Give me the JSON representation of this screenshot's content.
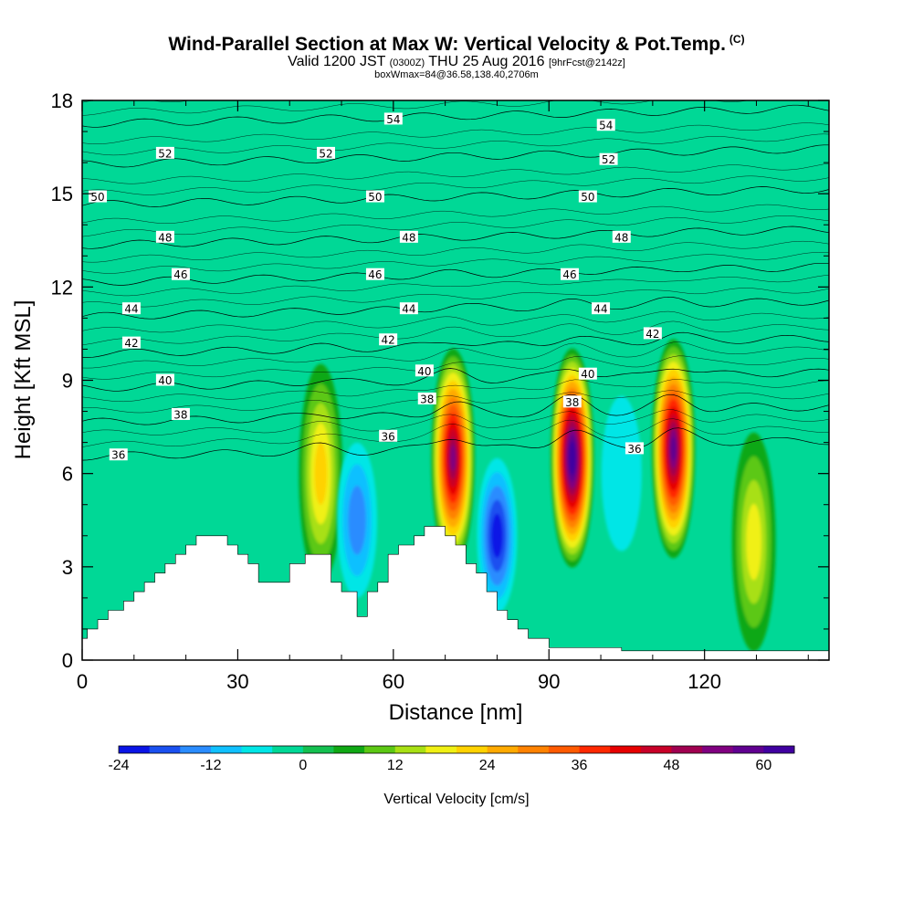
{
  "header": {
    "title": "Wind-Parallel Section at Max W: Vertical Velocity & Pot.Temp.",
    "copyright": "(C)",
    "valid_prefix": "Valid 1200 JST",
    "valid_utc": "(0300Z)",
    "valid_date": "THU 25 Aug 2016",
    "forecast": "[9hrFcst@2142z]",
    "box_info": "boxWmax=84@36.58,138.40,2706m"
  },
  "chart_data": {
    "type": "heatmap",
    "xlabel": "Distance [nm]",
    "ylabel": "Height [Kft MSL]",
    "xlim": [
      0,
      144
    ],
    "ylim": [
      0,
      18
    ],
    "x_ticks": [
      0,
      30,
      60,
      90,
      120
    ],
    "y_ticks": [
      0,
      3,
      6,
      9,
      12,
      15,
      18
    ],
    "colorbar": {
      "label": "Vertical Velocity [cm/s]",
      "min": -24,
      "max": 64,
      "step": 4,
      "tick_labels": [
        "-24",
        "-12",
        "0",
        "12",
        "24",
        "36",
        "48",
        "60"
      ],
      "tick_values": [
        -24,
        -12,
        0,
        12,
        24,
        36,
        48,
        60
      ],
      "colors": [
        "#0a14e6",
        "#1a50f0",
        "#2a8cff",
        "#10c0ff",
        "#00e6e6",
        "#00d896",
        "#14c050",
        "#10a814",
        "#5cc814",
        "#a8e014",
        "#f0f014",
        "#ffd200",
        "#ffaa00",
        "#ff8200",
        "#ff5a00",
        "#ff2800",
        "#e60000",
        "#c80028",
        "#a00050",
        "#800080",
        "#600090",
        "#4000a0"
      ]
    },
    "background_color": "#00d896",
    "terrain_profile": [
      [
        0,
        0.7
      ],
      [
        1,
        0.7
      ],
      [
        1,
        1.0
      ],
      [
        3,
        1.0
      ],
      [
        3,
        1.3
      ],
      [
        5,
        1.3
      ],
      [
        5,
        1.6
      ],
      [
        8,
        1.6
      ],
      [
        8,
        1.9
      ],
      [
        10,
        1.9
      ],
      [
        10,
        2.2
      ],
      [
        12,
        2.2
      ],
      [
        12,
        2.5
      ],
      [
        14,
        2.5
      ],
      [
        14,
        2.8
      ],
      [
        16,
        2.8
      ],
      [
        16,
        3.1
      ],
      [
        18,
        3.1
      ],
      [
        18,
        3.4
      ],
      [
        20,
        3.4
      ],
      [
        20,
        3.7
      ],
      [
        22,
        3.7
      ],
      [
        22,
        4.0
      ],
      [
        28,
        4.0
      ],
      [
        28,
        3.7
      ],
      [
        30,
        3.7
      ],
      [
        30,
        3.4
      ],
      [
        32,
        3.4
      ],
      [
        32,
        3.1
      ],
      [
        34,
        3.1
      ],
      [
        34,
        2.5
      ],
      [
        40,
        2.5
      ],
      [
        40,
        3.1
      ],
      [
        43,
        3.1
      ],
      [
        43,
        3.4
      ],
      [
        48,
        3.4
      ],
      [
        48,
        2.5
      ],
      [
        50,
        2.5
      ],
      [
        50,
        2.2
      ],
      [
        53,
        2.2
      ],
      [
        53,
        1.4
      ],
      [
        55,
        1.4
      ],
      [
        55,
        2.2
      ],
      [
        57,
        2.2
      ],
      [
        57,
        2.5
      ],
      [
        59,
        2.5
      ],
      [
        59,
        3.4
      ],
      [
        61,
        3.4
      ],
      [
        61,
        3.7
      ],
      [
        64,
        3.7
      ],
      [
        64,
        4.0
      ],
      [
        66,
        4.0
      ],
      [
        66,
        4.3
      ],
      [
        70,
        4.3
      ],
      [
        70,
        4.0
      ],
      [
        72,
        4.0
      ],
      [
        72,
        3.7
      ],
      [
        74,
        3.7
      ],
      [
        74,
        3.1
      ],
      [
        76,
        3.1
      ],
      [
        76,
        2.8
      ],
      [
        78,
        2.8
      ],
      [
        78,
        2.2
      ],
      [
        80,
        2.2
      ],
      [
        80,
        1.6
      ],
      [
        82,
        1.6
      ],
      [
        82,
        1.3
      ],
      [
        84,
        1.3
      ],
      [
        84,
        1.0
      ],
      [
        86,
        1.0
      ],
      [
        86,
        0.7
      ],
      [
        90,
        0.7
      ],
      [
        90,
        0.4
      ],
      [
        104,
        0.4
      ],
      [
        104,
        0.3
      ],
      [
        144,
        0.3
      ]
    ],
    "updrafts": [
      {
        "x": 46,
        "y": 6.0,
        "peak": 22
      },
      {
        "x": 71.5,
        "y": 6.5,
        "peak": 52
      },
      {
        "x": 94.5,
        "y": 6.5,
        "peak": 64
      },
      {
        "x": 114,
        "y": 6.8,
        "peak": 56
      },
      {
        "x": 129.5,
        "y": 3.8,
        "peak": 16
      }
    ],
    "downdrafts": [
      {
        "x": 53,
        "y": 4.5,
        "peak": -14
      },
      {
        "x": 80,
        "y": 4.0,
        "peak": -22
      },
      {
        "x": 104,
        "y": 6.0,
        "peak": -6
      }
    ],
    "isentropes": [
      {
        "theta": 36,
        "y": 6.8
      },
      {
        "theta": 38,
        "y": 7.9
      },
      {
        "theta": 40,
        "y": 9.0
      },
      {
        "theta": 42,
        "y": 10.1
      },
      {
        "theta": 44,
        "y": 11.3
      },
      {
        "theta": 46,
        "y": 12.4
      },
      {
        "theta": 48,
        "y": 13.6
      },
      {
        "theta": 50,
        "y": 14.9
      },
      {
        "theta": 52,
        "y": 16.2
      },
      {
        "theta": 54,
        "y": 17.5
      }
    ],
    "contour_labels": [
      {
        "text": "54",
        "x": 60,
        "y": 17.4
      },
      {
        "text": "54",
        "x": 101,
        "y": 17.2
      },
      {
        "text": "52",
        "x": 16,
        "y": 16.3
      },
      {
        "text": "52",
        "x": 47,
        "y": 16.3
      },
      {
        "text": "52",
        "x": 101.5,
        "y": 16.1
      },
      {
        "text": "50",
        "x": 3,
        "y": 14.9
      },
      {
        "text": "50",
        "x": 56.5,
        "y": 14.9
      },
      {
        "text": "50",
        "x": 97.5,
        "y": 14.9
      },
      {
        "text": "48",
        "x": 16,
        "y": 13.6
      },
      {
        "text": "48",
        "x": 63,
        "y": 13.6
      },
      {
        "text": "48",
        "x": 104,
        "y": 13.6
      },
      {
        "text": "46",
        "x": 19,
        "y": 12.4
      },
      {
        "text": "46",
        "x": 56.5,
        "y": 12.4
      },
      {
        "text": "46",
        "x": 94,
        "y": 12.4
      },
      {
        "text": "44",
        "x": 9.5,
        "y": 11.3
      },
      {
        "text": "44",
        "x": 63,
        "y": 11.3
      },
      {
        "text": "44",
        "x": 100,
        "y": 11.3
      },
      {
        "text": "42",
        "x": 9.5,
        "y": 10.2
      },
      {
        "text": "42",
        "x": 59,
        "y": 10.3
      },
      {
        "text": "42",
        "x": 110,
        "y": 10.5
      },
      {
        "text": "40",
        "x": 16,
        "y": 9.0
      },
      {
        "text": "40",
        "x": 66,
        "y": 9.3
      },
      {
        "text": "40",
        "x": 97.5,
        "y": 9.2
      },
      {
        "text": "38",
        "x": 19,
        "y": 7.9
      },
      {
        "text": "38",
        "x": 66.5,
        "y": 8.4
      },
      {
        "text": "38",
        "x": 94.5,
        "y": 8.3
      },
      {
        "text": "36",
        "x": 7,
        "y": 6.6
      },
      {
        "text": "36",
        "x": 59,
        "y": 7.2
      },
      {
        "text": "36",
        "x": 106.5,
        "y": 6.8
      }
    ]
  }
}
